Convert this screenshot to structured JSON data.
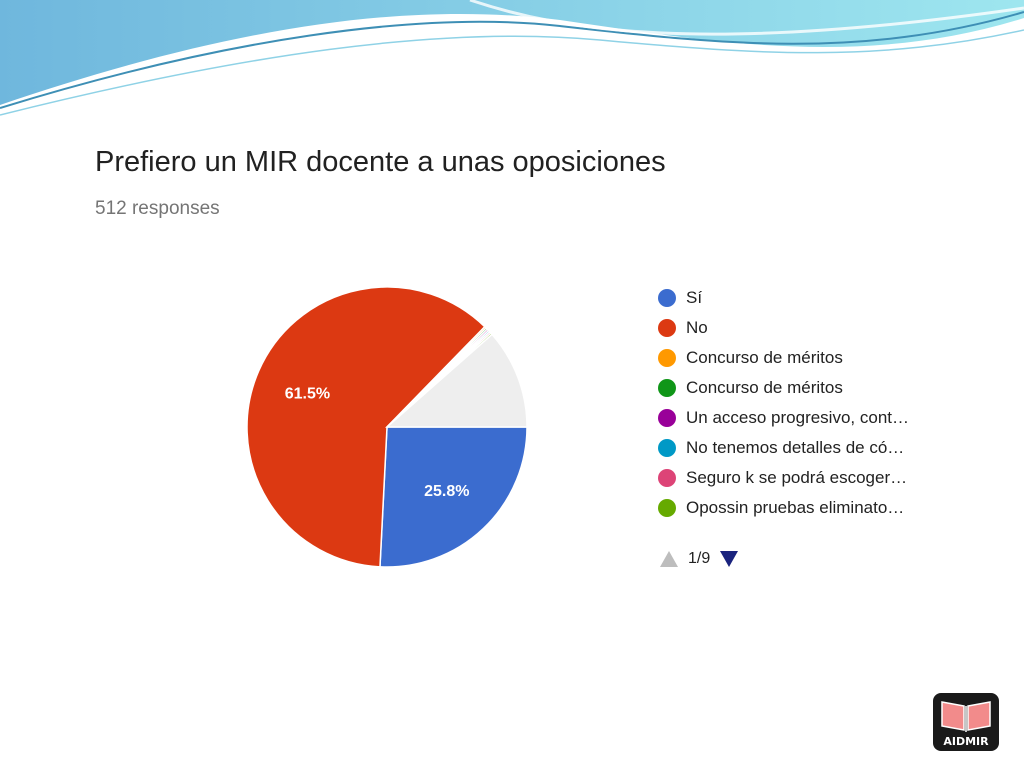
{
  "chart_data": {
    "type": "pie",
    "title": "Prefiero un MIR docente a unas oposiciones",
    "subtitle": "512 responses",
    "slices": [
      {
        "label": "Sí",
        "value": 25.8,
        "color": "#3b6ccf",
        "display": "25.8%"
      },
      {
        "label": "No",
        "value": 61.5,
        "color": "#dc3912",
        "display": "61.5%"
      },
      {
        "label": "Concurso de méritos",
        "value": 0.2,
        "color": "#ff9900",
        "display": ""
      },
      {
        "label": "Concurso de méritos",
        "value": 0.2,
        "color": "#109618",
        "display": ""
      },
      {
        "label": "Un acceso progresivo, cont…",
        "value": 0.2,
        "color": "#990099",
        "display": ""
      },
      {
        "label": "No tenemos detalles de có…",
        "value": 0.2,
        "color": "#0099c6",
        "display": ""
      },
      {
        "label": "Seguro k se podrá escoger…",
        "value": 0.2,
        "color": "#dd4477",
        "display": ""
      },
      {
        "label": "Opossin pruebas eliminato…",
        "value": 0.2,
        "color": "#66aa00",
        "display": ""
      },
      {
        "label": "",
        "value": 11.5,
        "color": "#eeeeee",
        "display": ""
      }
    ],
    "legend_position": "right"
  },
  "pager": {
    "text": "1/9"
  },
  "logo": {
    "text": "AIDMIR"
  }
}
